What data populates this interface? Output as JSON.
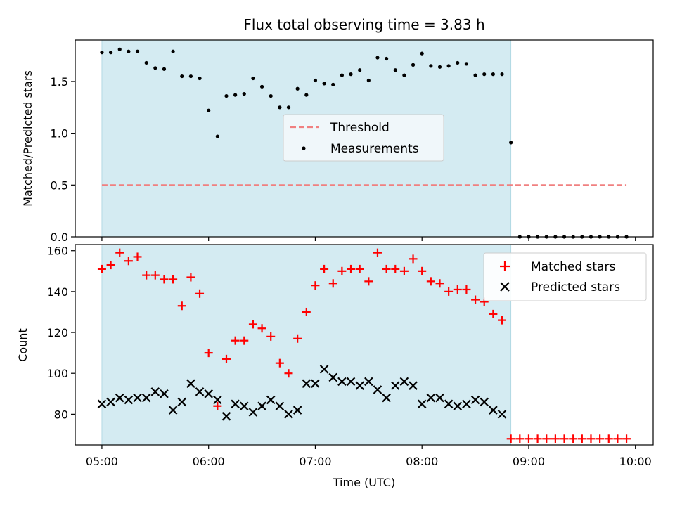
{
  "chart_data": [
    {
      "type": "scatter",
      "title": "Flux total observing time = 3.83 h",
      "xlabel": "",
      "ylabel": "Matched/Predicted stars",
      "xlim": [
        "04:45",
        "10:10"
      ],
      "ylim": [
        0,
        1.9
      ],
      "yticks": [
        "0.0",
        "0.5",
        "1.0",
        "1.5"
      ],
      "grid": false,
      "legend_position": "center",
      "shaded_interval": {
        "start": "05:00",
        "end": "08:50",
        "color": "#d4ebf2"
      },
      "threshold": {
        "name": "Threshold",
        "value": 0.5,
        "x_start": "05:00",
        "x_end": "09:55",
        "color": "#f08080"
      },
      "series": [
        {
          "name": "Measurements",
          "color": "#000000",
          "x": [
            "05:00",
            "05:05",
            "05:10",
            "05:15",
            "05:20",
            "05:25",
            "05:30",
            "05:35",
            "05:40",
            "05:45",
            "05:50",
            "05:55",
            "06:00",
            "06:05",
            "06:10",
            "06:15",
            "06:20",
            "06:25",
            "06:30",
            "06:35",
            "06:40",
            "06:45",
            "06:50",
            "06:55",
            "07:00",
            "07:05",
            "07:10",
            "07:15",
            "07:20",
            "07:25",
            "07:30",
            "07:35",
            "07:40",
            "07:45",
            "07:50",
            "07:55",
            "08:00",
            "08:05",
            "08:10",
            "08:15",
            "08:20",
            "08:25",
            "08:30",
            "08:35",
            "08:40",
            "08:45",
            "08:50",
            "08:55",
            "09:00",
            "09:05",
            "09:10",
            "09:15",
            "09:20",
            "09:25",
            "09:30",
            "09:35",
            "09:40",
            "09:45",
            "09:50",
            "09:55"
          ],
          "y": [
            1.78,
            1.78,
            1.81,
            1.79,
            1.79,
            1.68,
            1.63,
            1.62,
            1.79,
            1.55,
            1.55,
            1.53,
            1.22,
            0.97,
            1.36,
            1.37,
            1.38,
            1.53,
            1.45,
            1.36,
            1.25,
            1.25,
            1.43,
            1.37,
            1.51,
            1.48,
            1.47,
            1.56,
            1.57,
            1.61,
            1.51,
            1.73,
            1.72,
            1.61,
            1.56,
            1.66,
            1.77,
            1.65,
            1.64,
            1.65,
            1.68,
            1.67,
            1.56,
            1.57,
            1.57,
            1.57,
            0.91,
            0,
            0,
            0,
            0,
            0,
            0,
            0,
            0,
            0,
            0,
            0,
            0,
            0
          ]
        }
      ]
    },
    {
      "type": "scatter",
      "title": "",
      "xlabel": "Time (UTC)",
      "ylabel": "Count",
      "xlim": [
        "04:45",
        "10:10"
      ],
      "ylim": [
        65,
        163
      ],
      "yticks": [
        "80",
        "100",
        "120",
        "140",
        "160"
      ],
      "xticks": [
        "05:00",
        "06:00",
        "07:00",
        "08:00",
        "09:00",
        "10:00"
      ],
      "grid": false,
      "legend_position": "top-right",
      "shaded_interval": {
        "start": "05:00",
        "end": "08:50",
        "color": "#d4ebf2"
      },
      "series": [
        {
          "name": "Matched stars",
          "marker": "plus",
          "color": "#ff0000",
          "x": [
            "05:00",
            "05:05",
            "05:10",
            "05:15",
            "05:20",
            "05:25",
            "05:30",
            "05:35",
            "05:40",
            "05:45",
            "05:50",
            "05:55",
            "06:00",
            "06:05",
            "06:10",
            "06:15",
            "06:20",
            "06:25",
            "06:30",
            "06:35",
            "06:40",
            "06:45",
            "06:50",
            "06:55",
            "07:00",
            "07:05",
            "07:10",
            "07:15",
            "07:20",
            "07:25",
            "07:30",
            "07:35",
            "07:40",
            "07:45",
            "07:50",
            "07:55",
            "08:00",
            "08:05",
            "08:10",
            "08:15",
            "08:20",
            "08:25",
            "08:30",
            "08:35",
            "08:40",
            "08:45",
            "08:50",
            "08:55",
            "09:00",
            "09:05",
            "09:10",
            "09:15",
            "09:20",
            "09:25",
            "09:30",
            "09:35",
            "09:40",
            "09:45",
            "09:50",
            "09:55"
          ],
          "y": [
            151,
            153,
            159,
            155,
            157,
            148,
            148,
            146,
            146,
            133,
            147,
            139,
            110,
            84,
            107,
            116,
            116,
            124,
            122,
            118,
            105,
            100,
            117,
            130,
            143,
            151,
            144,
            150,
            151,
            151,
            145,
            159,
            151,
            151,
            150,
            156,
            150,
            145,
            144,
            140,
            141,
            141,
            136,
            135,
            129,
            126,
            68,
            68,
            68,
            68,
            68,
            68,
            68,
            68,
            68,
            68,
            68,
            68,
            68,
            68
          ]
        },
        {
          "name": "Predicted stars",
          "marker": "x",
          "color": "#000000",
          "x": [
            "05:00",
            "05:05",
            "05:10",
            "05:15",
            "05:20",
            "05:25",
            "05:30",
            "05:35",
            "05:40",
            "05:45",
            "05:50",
            "05:55",
            "06:00",
            "06:05",
            "06:10",
            "06:15",
            "06:20",
            "06:25",
            "06:30",
            "06:35",
            "06:40",
            "06:45",
            "06:50",
            "06:55",
            "07:00",
            "07:05",
            "07:10",
            "07:15",
            "07:20",
            "07:25",
            "07:30",
            "07:35",
            "07:40",
            "07:45",
            "07:50",
            "07:55",
            "08:00",
            "08:05",
            "08:10",
            "08:15",
            "08:20",
            "08:25",
            "08:30",
            "08:35",
            "08:40",
            "08:45"
          ],
          "y": [
            85,
            86,
            88,
            87,
            88,
            88,
            91,
            90,
            82,
            86,
            95,
            91,
            90,
            87,
            79,
            85,
            84,
            81,
            84,
            87,
            84,
            80,
            82,
            95,
            95,
            102,
            98,
            96,
            96,
            94,
            96,
            92,
            88,
            94,
            96,
            94,
            85,
            88,
            88,
            85,
            84,
            85,
            87,
            86,
            82,
            80
          ]
        }
      ]
    }
  ]
}
